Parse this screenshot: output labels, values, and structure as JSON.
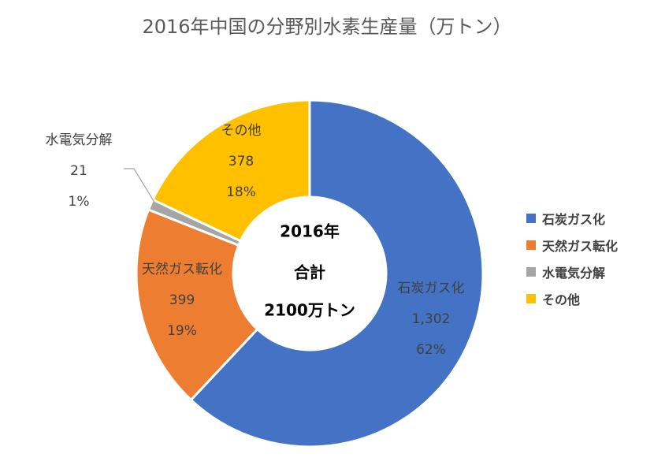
{
  "chart_data": {
    "type": "pie",
    "title": "2016年中国の分野別水素生産量（万トン）",
    "center_label": [
      "2016年",
      "合計",
      "2100万トン"
    ],
    "slices": [
      {
        "name": "石炭ガス化",
        "value": 1302,
        "value_label": "1,302",
        "percent": "62%",
        "color": "#4472C4"
      },
      {
        "name": "天然ガス転化",
        "value": 399,
        "value_label": "399",
        "percent": "19%",
        "color": "#ED7D31"
      },
      {
        "name": "水電気分解",
        "value": 21,
        "value_label": "21",
        "percent": "1%",
        "color": "#A5A5A5"
      },
      {
        "name": "その他",
        "value": 378,
        "value_label": "378",
        "percent": "18%",
        "color": "#FFC000"
      }
    ],
    "legend_position": "right"
  }
}
